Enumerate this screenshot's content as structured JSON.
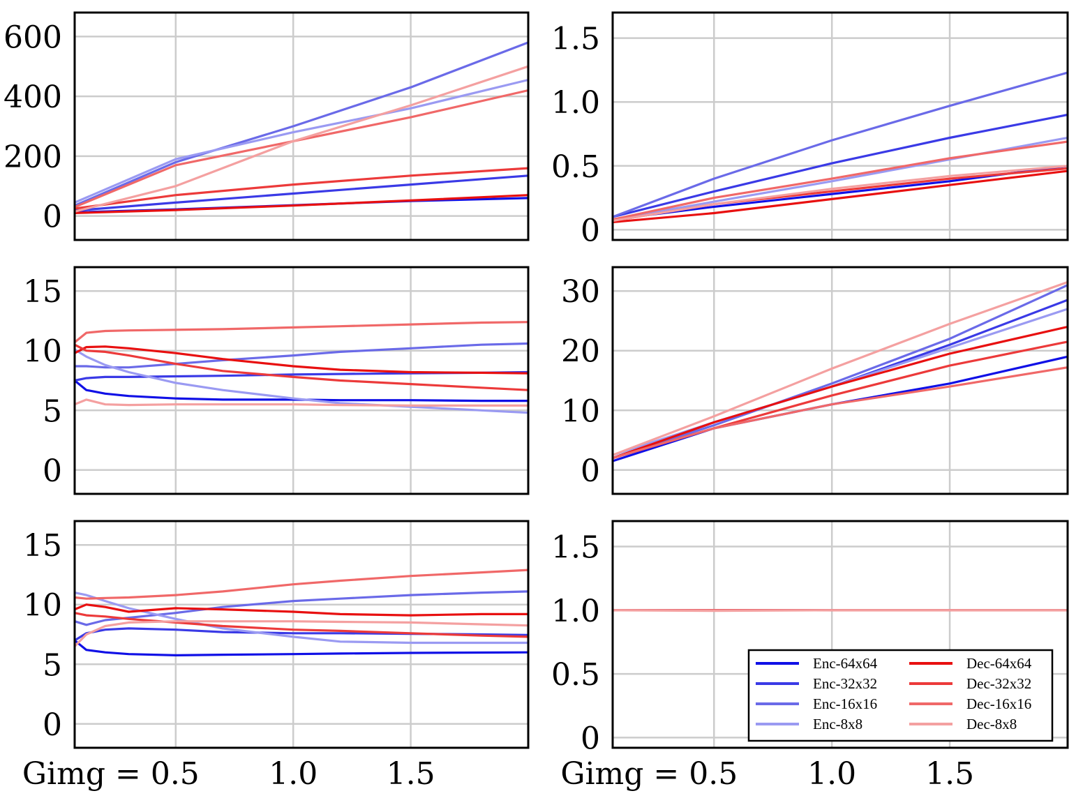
{
  "colors": {
    "Enc-64x64": "#1010e6",
    "Enc-32x32": "#3a3ae6",
    "Enc-16x16": "#6a6ae8",
    "Enc-8x8": "#9a9af2",
    "Dec-64x64": "#e81010",
    "Dec-32x32": "#ec3a3a",
    "Dec-16x16": "#f06868",
    "Dec-8x8": "#f4a0a0",
    "grid": "#cccccc"
  },
  "legend": {
    "position": "bottom-right of panel 6",
    "entries": [
      "Enc-64x64",
      "Enc-32x32",
      "Enc-16x16",
      "Enc-8x8",
      "Dec-64x64",
      "Dec-32x32",
      "Dec-16x16",
      "Dec-8x8"
    ]
  },
  "x_axis": {
    "first_label": "Gimg = 0.5",
    "tick_labels": [
      "Gimg = 0.5",
      "1.0",
      "1.5"
    ],
    "range": [
      0.07,
      2.0
    ]
  },
  "chart_data": [
    {
      "type": "line",
      "panel": "row1-left",
      "ylim": [
        -80,
        680
      ],
      "yticks": [
        {
          "v": 0,
          "label": "0"
        },
        {
          "v": 200,
          "label": "200"
        },
        {
          "v": 400,
          "label": "400"
        },
        {
          "v": 600,
          "label": "600"
        }
      ],
      "x": [
        0.07,
        0.5,
        1.0,
        1.5,
        2.0
      ],
      "series": [
        {
          "name": "Enc-64x64",
          "values": [
            12,
            22,
            36,
            50,
            60
          ]
        },
        {
          "name": "Enc-32x32",
          "values": [
            18,
            45,
            75,
            105,
            135
          ]
        },
        {
          "name": "Enc-16x16",
          "values": [
            35,
            180,
            300,
            430,
            580
          ]
        },
        {
          "name": "Enc-8x8",
          "values": [
            45,
            190,
            280,
            360,
            455
          ]
        },
        {
          "name": "Dec-64x64",
          "values": [
            10,
            20,
            35,
            52,
            70
          ]
        },
        {
          "name": "Dec-32x32",
          "values": [
            25,
            70,
            105,
            135,
            160
          ]
        },
        {
          "name": "Dec-16x16",
          "values": [
            30,
            170,
            250,
            330,
            420
          ]
        },
        {
          "name": "Dec-8x8",
          "values": [
            15,
            100,
            250,
            370,
            500
          ]
        }
      ]
    },
    {
      "type": "line",
      "panel": "row1-right",
      "ylim": [
        -0.08,
        1.7
      ],
      "yticks": [
        {
          "v": 0,
          "label": "0"
        },
        {
          "v": 0.5,
          "label": "0.5"
        },
        {
          "v": 1.0,
          "label": "1.0"
        },
        {
          "v": 1.5,
          "label": "1.5"
        }
      ],
      "x": [
        0.07,
        0.5,
        1.0,
        1.5,
        2.0
      ],
      "series": [
        {
          "name": "Enc-64x64",
          "values": [
            0.08,
            0.18,
            0.28,
            0.38,
            0.5
          ]
        },
        {
          "name": "Enc-32x32",
          "values": [
            0.1,
            0.3,
            0.52,
            0.72,
            0.9
          ]
        },
        {
          "name": "Enc-16x16",
          "values": [
            0.1,
            0.4,
            0.7,
            0.97,
            1.23
          ]
        },
        {
          "name": "Enc-8x8",
          "values": [
            0.08,
            0.22,
            0.38,
            0.55,
            0.72
          ]
        },
        {
          "name": "Dec-64x64",
          "values": [
            0.06,
            0.13,
            0.24,
            0.35,
            0.46
          ]
        },
        {
          "name": "Dec-32x32",
          "values": [
            0.07,
            0.2,
            0.3,
            0.4,
            0.48
          ]
        },
        {
          "name": "Dec-16x16",
          "values": [
            0.08,
            0.25,
            0.4,
            0.56,
            0.69
          ]
        },
        {
          "name": "Dec-8x8",
          "values": [
            0.07,
            0.2,
            0.32,
            0.42,
            0.5
          ]
        }
      ]
    },
    {
      "type": "line",
      "panel": "row2-left",
      "ylim": [
        -2,
        17
      ],
      "yticks": [
        {
          "v": 0,
          "label": "0"
        },
        {
          "v": 5,
          "label": "5"
        },
        {
          "v": 10,
          "label": "10"
        },
        {
          "v": 15,
          "label": "15"
        }
      ],
      "x": [
        0.07,
        0.12,
        0.2,
        0.3,
        0.5,
        0.7,
        1.0,
        1.2,
        1.5,
        1.8,
        2.0
      ],
      "series": [
        {
          "name": "Enc-64x64",
          "values": [
            7.5,
            6.7,
            6.4,
            6.2,
            6.0,
            5.9,
            5.9,
            5.85,
            5.85,
            5.8,
            5.8
          ]
        },
        {
          "name": "Enc-32x32",
          "values": [
            7.5,
            7.7,
            7.8,
            7.8,
            7.85,
            7.9,
            8.0,
            8.05,
            8.1,
            8.15,
            8.2
          ]
        },
        {
          "name": "Enc-16x16",
          "values": [
            8.7,
            8.7,
            8.6,
            8.6,
            8.9,
            9.2,
            9.6,
            9.9,
            10.2,
            10.5,
            10.6
          ]
        },
        {
          "name": "Enc-8x8",
          "values": [
            10.1,
            9.5,
            8.8,
            8.2,
            7.3,
            6.7,
            6.0,
            5.6,
            5.3,
            5.0,
            4.8
          ]
        },
        {
          "name": "Dec-64x64",
          "values": [
            9.8,
            10.3,
            10.35,
            10.2,
            9.8,
            9.3,
            8.7,
            8.4,
            8.2,
            8.15,
            8.1
          ]
        },
        {
          "name": "Dec-32x32",
          "values": [
            10.5,
            10.0,
            9.9,
            9.6,
            8.9,
            8.3,
            7.8,
            7.5,
            7.2,
            6.9,
            6.7
          ]
        },
        {
          "name": "Dec-16x16",
          "values": [
            10.7,
            11.5,
            11.65,
            11.7,
            11.75,
            11.8,
            11.95,
            12.05,
            12.2,
            12.35,
            12.4
          ]
        },
        {
          "name": "Dec-8x8",
          "values": [
            5.5,
            5.9,
            5.5,
            5.45,
            5.5,
            5.5,
            5.5,
            5.45,
            5.4,
            5.4,
            5.4
          ]
        }
      ]
    },
    {
      "type": "line",
      "panel": "row2-right",
      "ylim": [
        -4,
        34
      ],
      "yticks": [
        {
          "v": 0,
          "label": "0"
        },
        {
          "v": 10,
          "label": "10"
        },
        {
          "v": 20,
          "label": "20"
        },
        {
          "v": 30,
          "label": "30"
        }
      ],
      "x": [
        0.07,
        0.5,
        1.0,
        1.5,
        2.0
      ],
      "series": [
        {
          "name": "Enc-64x64",
          "values": [
            1.5,
            7,
            11,
            14.5,
            19
          ]
        },
        {
          "name": "Enc-32x32",
          "values": [
            2,
            8,
            14,
            21,
            28.5
          ]
        },
        {
          "name": "Enc-16x16",
          "values": [
            2,
            7.5,
            14.5,
            22,
            31
          ]
        },
        {
          "name": "Enc-8x8",
          "values": [
            2.5,
            8,
            14,
            20.5,
            27
          ]
        },
        {
          "name": "Dec-64x64",
          "values": [
            2,
            8,
            14,
            19.5,
            24
          ]
        },
        {
          "name": "Dec-32x32",
          "values": [
            2,
            7,
            12.5,
            17.5,
            21.5
          ]
        },
        {
          "name": "Dec-16x16",
          "values": [
            2,
            7,
            11,
            14,
            17.2
          ]
        },
        {
          "name": "Dec-8x8",
          "values": [
            2.5,
            9,
            17,
            24.5,
            31.5
          ]
        }
      ]
    },
    {
      "type": "line",
      "panel": "row3-left",
      "ylim": [
        -2,
        17
      ],
      "yticks": [
        {
          "v": 0,
          "label": "0"
        },
        {
          "v": 5,
          "label": "5"
        },
        {
          "v": 10,
          "label": "10"
        },
        {
          "v": 15,
          "label": "15"
        }
      ],
      "x": [
        0.07,
        0.12,
        0.2,
        0.3,
        0.5,
        0.7,
        1.0,
        1.2,
        1.5,
        1.8,
        2.0
      ],
      "series": [
        {
          "name": "Enc-64x64",
          "values": [
            7.0,
            6.2,
            6.0,
            5.85,
            5.75,
            5.8,
            5.85,
            5.9,
            5.95,
            5.98,
            6.0
          ]
        },
        {
          "name": "Enc-32x32",
          "values": [
            7.0,
            7.6,
            7.9,
            8.0,
            7.9,
            7.7,
            7.6,
            7.6,
            7.55,
            7.5,
            7.45
          ]
        },
        {
          "name": "Enc-16x16",
          "values": [
            8.6,
            8.3,
            8.7,
            8.9,
            9.3,
            9.8,
            10.3,
            10.5,
            10.8,
            11.0,
            11.1
          ]
        },
        {
          "name": "Enc-8x8",
          "values": [
            11.0,
            10.8,
            10.3,
            9.7,
            8.8,
            8.0,
            7.3,
            6.9,
            6.8,
            6.8,
            6.8
          ]
        },
        {
          "name": "Dec-64x64",
          "values": [
            9.6,
            10.0,
            9.8,
            9.4,
            9.7,
            9.6,
            9.4,
            9.2,
            9.1,
            9.2,
            9.2
          ]
        },
        {
          "name": "Dec-32x32",
          "values": [
            9.3,
            9.1,
            9.0,
            8.8,
            8.5,
            8.2,
            7.9,
            7.8,
            7.6,
            7.4,
            7.3
          ]
        },
        {
          "name": "Dec-16x16",
          "values": [
            10.6,
            10.5,
            10.55,
            10.6,
            10.8,
            11.1,
            11.7,
            12.0,
            12.4,
            12.7,
            12.9
          ]
        },
        {
          "name": "Dec-8x8",
          "values": [
            6.5,
            7.5,
            8.2,
            8.5,
            8.6,
            8.6,
            8.6,
            8.55,
            8.5,
            8.35,
            8.25
          ]
        }
      ]
    },
    {
      "type": "line",
      "panel": "row3-right",
      "ylim": [
        -0.08,
        1.7
      ],
      "yticks": [
        {
          "v": 0,
          "label": "0"
        },
        {
          "v": 0.5,
          "label": "0.5"
        },
        {
          "v": 1.0,
          "label": "1.0"
        },
        {
          "v": 1.5,
          "label": "1.5"
        }
      ],
      "x": [
        0.07,
        0.5,
        1.0,
        1.5,
        2.0
      ],
      "series": [
        {
          "name": "Enc-64x64",
          "values": [
            1.0,
            1.0,
            1.0,
            1.0,
            1.0
          ]
        },
        {
          "name": "Enc-32x32",
          "values": [
            1.0,
            1.0,
            1.0,
            1.0,
            1.0
          ]
        },
        {
          "name": "Enc-16x16",
          "values": [
            1.0,
            1.0,
            1.0,
            1.0,
            1.0
          ]
        },
        {
          "name": "Enc-8x8",
          "values": [
            1.0,
            1.0,
            1.0,
            1.0,
            1.0
          ]
        },
        {
          "name": "Dec-64x64",
          "values": [
            1.0,
            1.0,
            1.0,
            1.0,
            1.0
          ]
        },
        {
          "name": "Dec-32x32",
          "values": [
            1.0,
            1.0,
            1.0,
            1.0,
            1.0
          ]
        },
        {
          "name": "Dec-16x16",
          "values": [
            1.0,
            1.0,
            1.0,
            1.0,
            1.0
          ]
        },
        {
          "name": "Dec-8x8",
          "values": [
            1.0,
            0.995,
            1.0,
            1.0,
            1.0
          ]
        }
      ]
    }
  ]
}
